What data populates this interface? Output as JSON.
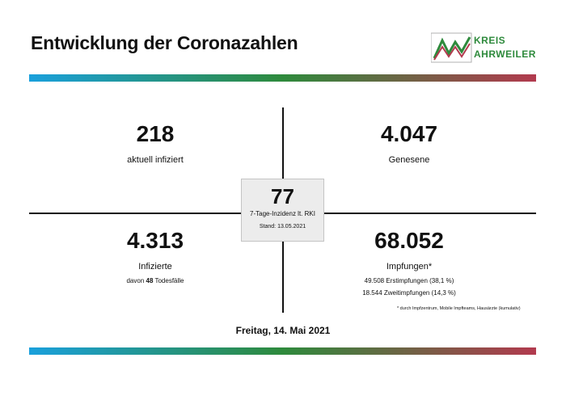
{
  "header": {
    "title": "Entwicklung der Coronazahlen",
    "logo_line1": "KREIS",
    "logo_line2": "AHRWEILER"
  },
  "stats": {
    "active": {
      "value": "218",
      "label": "aktuell infiziert"
    },
    "recovered": {
      "value": "4.047",
      "label": "Genesene"
    },
    "infected": {
      "value": "4.313",
      "label": "Infizierte",
      "deaths_prefix": "davon",
      "deaths_value": "48",
      "deaths_suffix": "Todesfälle"
    },
    "vaccinations": {
      "value": "68.052",
      "label": "Impfungen*",
      "first": "49.508 Erstimpfungen (38,1 %)",
      "second": "18.544 Zweitimpfungen (14,3 %)",
      "footnote": "* durch Impfzentrum, Mobile Impfteams, Hausärzte (kumulativ)"
    }
  },
  "incidence": {
    "value": "77",
    "label": "7-Tage-Inzidenz lt. RKI",
    "stand": "Stand: 13.05.2021"
  },
  "date": "Freitag, 14. Mai 2021",
  "colors": {
    "bar_start": "#1aa0dc",
    "bar_mid": "#2e8a3c",
    "bar_end": "#b23a4e",
    "logo_green": "#2e8a3c"
  }
}
